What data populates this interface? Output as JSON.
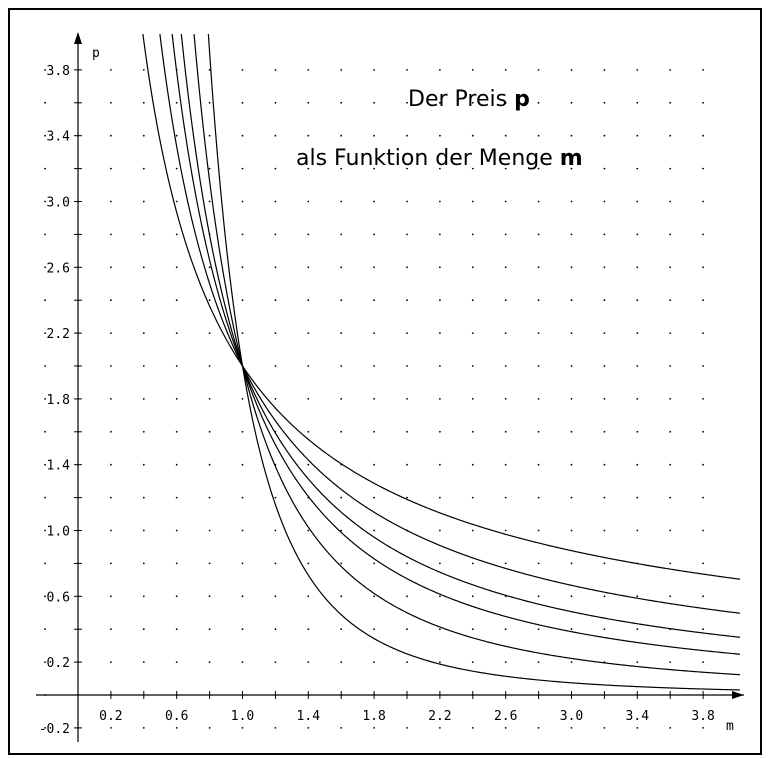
{
  "chart_data": {
    "type": "line",
    "title_line1": "Der Preis ",
    "title_line1_var": "p",
    "title_line2": "als Funktion der Menge ",
    "title_line2_var": "m",
    "xlabel": "m",
    "ylabel": "p",
    "xlim": [
      -0.2,
      4.0
    ],
    "ylim": [
      -0.25,
      4.0
    ],
    "x_ticks": [
      "0.2",
      "0.6",
      "1.0",
      "1.4",
      "1.8",
      "2.2",
      "2.6",
      "3.0",
      "3.4",
      "3.8"
    ],
    "y_ticks": [
      "-0.2",
      "0.2",
      "0.6",
      "1.0",
      "1.4",
      "1.8",
      "2.2",
      "2.6",
      "3.0",
      "3.4",
      "3.8"
    ],
    "grid": "dotted",
    "function": "p = 2 / m^k",
    "series": [
      {
        "exponent": 0.75
      },
      {
        "exponent": 1.0
      },
      {
        "exponent": 1.25
      },
      {
        "exponent": 1.5
      },
      {
        "exponent": 2.0
      },
      {
        "exponent": 3.0
      }
    ]
  }
}
